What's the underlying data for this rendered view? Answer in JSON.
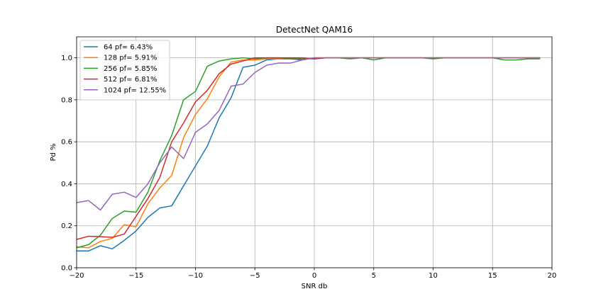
{
  "chart_data": {
    "type": "line",
    "title": "DetectNet QAM16",
    "xlabel": "SNR db",
    "ylabel": "Pd %",
    "xlim": [
      -20,
      20
    ],
    "ylim": [
      0.0,
      1.1
    ],
    "xticks": [
      -20,
      -15,
      -10,
      -5,
      0,
      5,
      10,
      15,
      20
    ],
    "xtick_labels": [
      "−20",
      "−15",
      "−10",
      "−5",
      "0",
      "5",
      "10",
      "15",
      "20"
    ],
    "yticks": [
      0.0,
      0.2,
      0.4,
      0.6,
      0.8,
      1.0
    ],
    "ytick_labels": [
      "0.0",
      "0.2",
      "0.4",
      "0.6",
      "0.8",
      "1.0"
    ],
    "grid": true,
    "legend_position": "top-left",
    "x": [
      -20,
      -19,
      -18,
      -17,
      -16,
      -15,
      -14,
      -13,
      -12,
      -11,
      -10,
      -9,
      -8,
      -7,
      -6,
      -5,
      -4,
      -3,
      -2,
      -1,
      0,
      1,
      2,
      3,
      4,
      5,
      6,
      7,
      8,
      9,
      10,
      11,
      12,
      13,
      14,
      15,
      16,
      17,
      18,
      19
    ],
    "series": [
      {
        "name": "64 pf= 6.43%",
        "color": "#1f77b4",
        "values": [
          0.08,
          0.08,
          0.105,
          0.09,
          0.13,
          0.175,
          0.24,
          0.285,
          0.295,
          0.39,
          0.485,
          0.58,
          0.715,
          0.81,
          0.955,
          0.965,
          0.99,
          0.995,
          0.995,
          0.99,
          1.0,
          1.0,
          1.0,
          1.0,
          1.0,
          1.0,
          1.0,
          1.0,
          1.0,
          1.0,
          1.0,
          1.0,
          1.0,
          1.0,
          1.0,
          1.0,
          1.0,
          1.0,
          1.0,
          1.0
        ]
      },
      {
        "name": "128 pf= 5.91%",
        "color": "#ff7f0e",
        "values": [
          0.1,
          0.095,
          0.125,
          0.14,
          0.205,
          0.195,
          0.305,
          0.38,
          0.44,
          0.62,
          0.73,
          0.805,
          0.91,
          0.98,
          0.99,
          0.99,
          0.995,
          0.995,
          1.0,
          0.995,
          1.0,
          1.0,
          1.0,
          1.0,
          1.0,
          1.0,
          1.0,
          1.0,
          1.0,
          1.0,
          1.0,
          1.0,
          1.0,
          1.0,
          1.0,
          1.0,
          1.0,
          1.0,
          1.0,
          1.0
        ]
      },
      {
        "name": "256 pf= 5.85%",
        "color": "#2ca02c",
        "values": [
          0.095,
          0.11,
          0.155,
          0.235,
          0.27,
          0.265,
          0.36,
          0.51,
          0.63,
          0.8,
          0.84,
          0.96,
          0.985,
          0.995,
          1.0,
          0.995,
          1.0,
          1.0,
          0.995,
          0.995,
          0.995,
          1.0,
          1.0,
          0.995,
          1.0,
          0.99,
          1.0,
          1.0,
          1.0,
          1.0,
          0.995,
          1.0,
          1.0,
          1.0,
          1.0,
          1.0,
          0.99,
          0.99,
          0.995,
          0.995
        ]
      },
      {
        "name": "512 pf= 6.81%",
        "color": "#d62728",
        "values": [
          0.135,
          0.15,
          0.148,
          0.145,
          0.16,
          0.245,
          0.33,
          0.43,
          0.6,
          0.69,
          0.79,
          0.845,
          0.925,
          0.97,
          0.985,
          1.0,
          1.0,
          1.0,
          1.0,
          1.0,
          0.995,
          1.0,
          1.0,
          1.0,
          1.0,
          1.0,
          1.0,
          1.0,
          1.0,
          1.0,
          1.0,
          1.0,
          1.0,
          1.0,
          1.0,
          1.0,
          1.0,
          1.0,
          1.0,
          1.0
        ]
      },
      {
        "name": "1024 pf= 12.55%",
        "color": "#9467bd",
        "values": [
          0.31,
          0.32,
          0.275,
          0.35,
          0.36,
          0.335,
          0.4,
          0.5,
          0.575,
          0.52,
          0.645,
          0.685,
          0.75,
          0.865,
          0.875,
          0.93,
          0.965,
          0.975,
          0.975,
          0.99,
          1.0,
          1.0,
          1.0,
          1.0,
          1.0,
          1.0,
          1.0,
          1.0,
          1.0,
          1.0,
          1.0,
          1.0,
          1.0,
          1.0,
          1.0,
          1.0,
          1.0,
          1.0,
          1.0,
          1.0
        ]
      }
    ]
  }
}
